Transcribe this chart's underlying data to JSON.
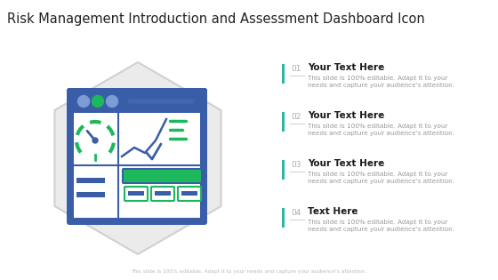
{
  "title": "Risk Management Introduction and Assessment Dashboard Icon",
  "title_fontsize": 10.5,
  "title_color": "#222222",
  "bg_color": "#ffffff",
  "hexagon_fill": "#ebebeb",
  "hexagon_edge": "#d0d0d0",
  "dashboard_fill": "#3a5da8",
  "dashboard_edge": "#3a5da8",
  "green_color": "#1cb85c",
  "teal_color": "#2ab5a5",
  "items": [
    {
      "num": "01",
      "heading": "Your Text Here",
      "body": "This slide is 100% editable. Adapt it to your\nneeds and capture your audience's attention."
    },
    {
      "num": "02",
      "heading": "Your Text Here",
      "body": "This slide is 100% editable. Adapt it to your\nneeds and capture your audience's attention."
    },
    {
      "num": "03",
      "heading": "Your Text Here",
      "body": "This slide is 100% editable. Adapt it to your\nneeds and capture your audience's attention."
    },
    {
      "num": "04",
      "heading": "Text Here",
      "body": "This slide is 100% editable. Adapt it to your\nneeds and capture your audience's attention."
    }
  ],
  "footer": "This slide is 100% editable. Adapt it to your needs and capture your audience's attention.",
  "num_color": "#aaaaaa",
  "heading_color": "#1a1a1a",
  "body_color": "#999999",
  "bar_color": "#2ab5a5",
  "circle_blue": "#7b9cd4",
  "line_green": "#1cb85c",
  "chart_blue": "#3a5da8"
}
